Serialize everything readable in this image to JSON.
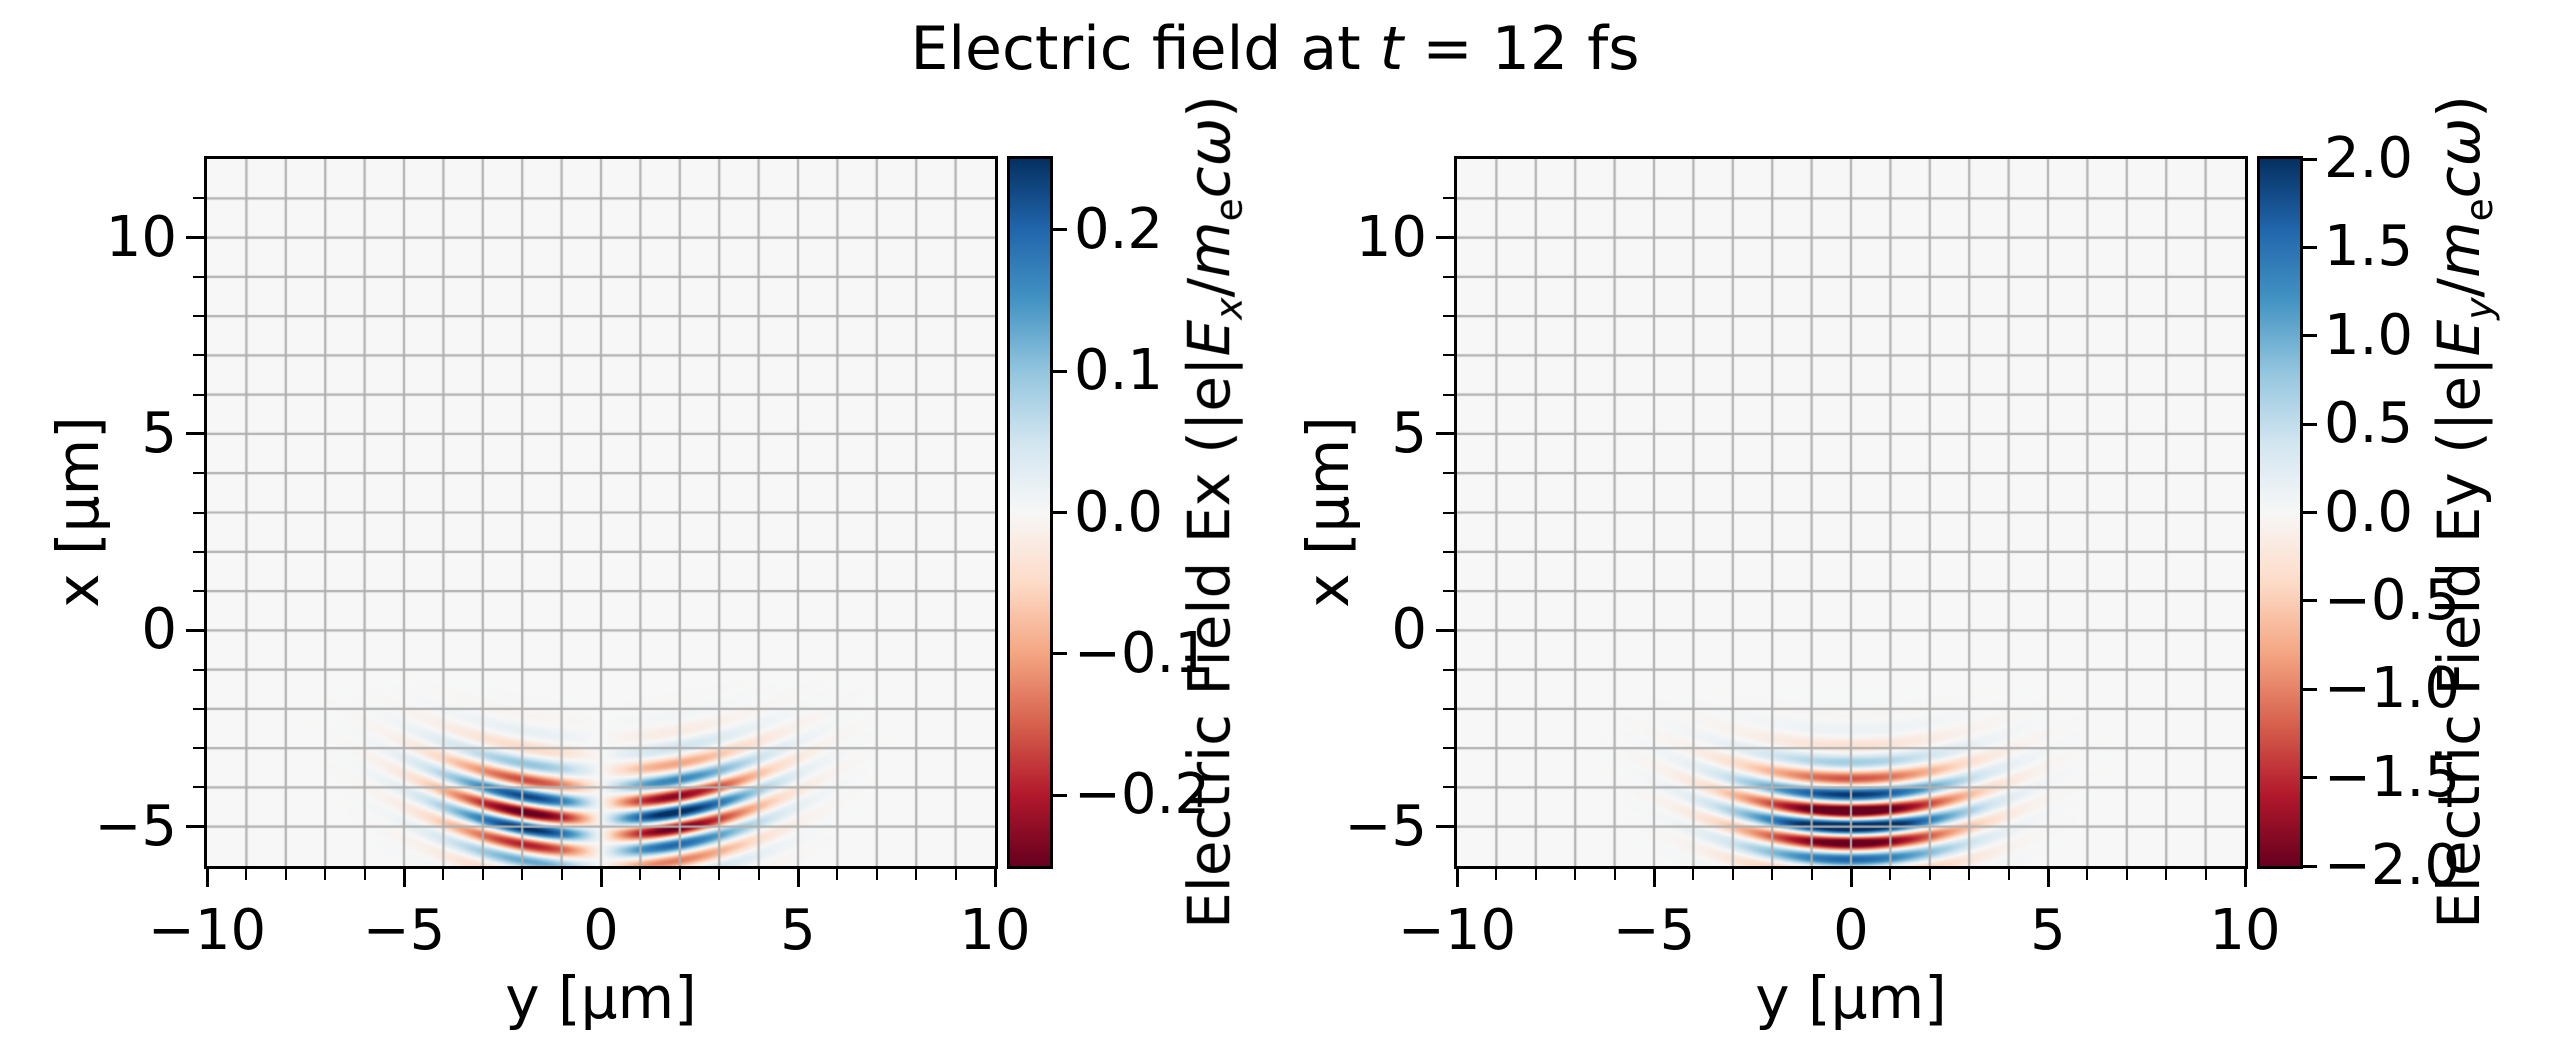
{
  "title": {
    "pre": "Electric field at ",
    "t": "t",
    "post": " = 12 fs"
  },
  "colors": {
    "background": "#ffffff",
    "plot_background": "#f7f6f6",
    "grid": "#b0b0b0",
    "spine": "#000000",
    "text": "#000000"
  },
  "colormap_stops": [
    "#67001f",
    "#b2182b",
    "#d6604d",
    "#f4a582",
    "#fddbc7",
    "#f7f7f7",
    "#d1e5f0",
    "#92c5de",
    "#4393c3",
    "#2166ac",
    "#053061"
  ],
  "chart_data": [
    {
      "type": "heatmap",
      "name": "Ex",
      "xlabel": "y [μm]",
      "ylabel": "x [μm]",
      "xlim": [
        -10,
        10
      ],
      "ylim": [
        -6,
        12
      ],
      "x_ticks": [
        {
          "value": -10,
          "label": "−10"
        },
        {
          "value": -5,
          "label": "−5"
        },
        {
          "value": 0,
          "label": "0"
        },
        {
          "value": 5,
          "label": "5"
        },
        {
          "value": 10,
          "label": "10"
        }
      ],
      "y_ticks": [
        {
          "value": 10,
          "label": "10"
        },
        {
          "value": 5,
          "label": "5"
        },
        {
          "value": 0,
          "label": "0"
        },
        {
          "value": -5,
          "label": "−5"
        }
      ],
      "minor_tick_step": 1,
      "grid_step": 1,
      "colormap": "RdBu",
      "colorbar": {
        "vmin": -0.25,
        "vmax": 0.25,
        "ticks": [
          {
            "value": 0.2,
            "label": "0.2"
          },
          {
            "value": 0.1,
            "label": "0.1"
          },
          {
            "value": 0.0,
            "label": "0.0"
          },
          {
            "value": -0.1,
            "label": "−0.1"
          },
          {
            "value": -0.2,
            "label": "−0.2"
          }
        ],
        "label": {
          "pre": "Electric Field Ex (|e|",
          "E": "E",
          "Esub": "x",
          "slash": "/",
          "m": "m",
          "msub": "e",
          "comega": "cω",
          "close": ")"
        }
      },
      "field_model": {
        "component": "Ex",
        "description": "Longitudinal laser field: antisymmetric two-lobe pattern in y, alternating stripes along x with period ~0.84 μm, curved phase fronts, peak |Ex| ~ 0.27",
        "symmetry": "antisymmetric",
        "amplitude": 0.62,
        "wavelength_um": 0.84,
        "center_x_um": -4.9,
        "sigma_x_um": 1.35,
        "waist_y_um": 2.6,
        "curvature_R_um": 11,
        "phase_crest_x_um": -5.85
      }
    },
    {
      "type": "heatmap",
      "name": "Ey",
      "xlabel": "y [μm]",
      "ylabel": "x [μm]",
      "xlim": [
        -10,
        10
      ],
      "ylim": [
        -6,
        12
      ],
      "x_ticks": [
        {
          "value": -10,
          "label": "−10"
        },
        {
          "value": -5,
          "label": "−5"
        },
        {
          "value": 0,
          "label": "0"
        },
        {
          "value": 5,
          "label": "5"
        },
        {
          "value": 10,
          "label": "10"
        }
      ],
      "y_ticks": [
        {
          "value": 10,
          "label": "10"
        },
        {
          "value": 5,
          "label": "5"
        },
        {
          "value": 0,
          "label": "0"
        },
        {
          "value": -5,
          "label": "−5"
        }
      ],
      "minor_tick_step": 1,
      "grid_step": 1,
      "colormap": "RdBu",
      "colorbar": {
        "vmin": -2.0,
        "vmax": 2.0,
        "ticks": [
          {
            "value": 2.0,
            "label": "2.0"
          },
          {
            "value": 1.5,
            "label": "1.5"
          },
          {
            "value": 1.0,
            "label": "1.0"
          },
          {
            "value": 0.5,
            "label": "0.5"
          },
          {
            "value": 0.0,
            "label": "0.0"
          },
          {
            "value": -0.5,
            "label": "−0.5"
          },
          {
            "value": -1.0,
            "label": "−1.0"
          },
          {
            "value": -1.5,
            "label": "−1.5"
          },
          {
            "value": -2.0,
            "label": "−2.0"
          }
        ],
        "label": {
          "pre": "Electric Field Ey (|e|",
          "E": "E",
          "Esub": "y",
          "slash": "/",
          "m": "m",
          "msub": "e",
          "comega": "cω",
          "close": ")"
        }
      },
      "field_model": {
        "component": "Ey",
        "description": "Transverse laser field: symmetric Gaussian beam pulse centered near x=-4.9 μm, y=0, alternating blue/red stripes with period ~0.84 μm, saturated at |Ey|>=2, curved phase fronts",
        "symmetry": "symmetric",
        "amplitude": 2.6,
        "wavelength_um": 0.84,
        "center_x_um": -4.9,
        "sigma_x_um": 1.35,
        "waist_y_um": 2.6,
        "curvature_R_um": 11,
        "phase_crest_x_um": -5.85
      }
    }
  ]
}
